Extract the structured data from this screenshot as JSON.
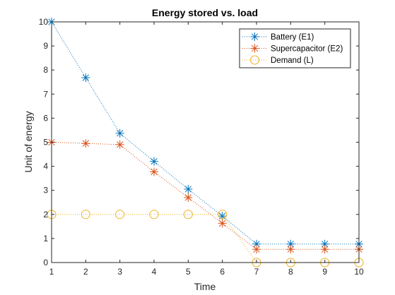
{
  "chart_data": {
    "type": "line",
    "title": "Energy stored vs. load",
    "xlabel": "Time",
    "ylabel": "Unit of energy",
    "xlim": [
      1,
      10
    ],
    "ylim": [
      0,
      10
    ],
    "xticks": [
      "1",
      "2",
      "3",
      "4",
      "5",
      "6",
      "7",
      "8",
      "9",
      "10"
    ],
    "yticks": [
      "0",
      "1",
      "2",
      "3",
      "4",
      "5",
      "6",
      "7",
      "8",
      "9",
      "10"
    ],
    "grid": false,
    "legend_position": "top-right",
    "x": [
      1,
      2,
      3,
      4,
      5,
      6,
      7,
      8,
      9,
      10
    ],
    "series": [
      {
        "name": "Battery (E1)",
        "values": [
          10,
          7.68,
          5.37,
          4.2,
          3.05,
          1.93,
          0.77,
          0.77,
          0.77,
          0.77
        ],
        "color": "#0072BD",
        "marker": "asterisk",
        "linestyle": "dotted"
      },
      {
        "name": "Supercapacitor (E2)",
        "values": [
          5.0,
          4.95,
          4.9,
          3.77,
          2.7,
          1.63,
          0.55,
          0.55,
          0.55,
          0.55
        ],
        "color": "#D95319",
        "marker": "asterisk",
        "linestyle": "dotted"
      },
      {
        "name": "Demand (L)",
        "values": [
          2,
          2,
          2,
          2,
          2,
          2,
          0,
          0,
          0,
          0
        ],
        "color": "#EDB120",
        "marker": "circle",
        "linestyle": "dotted"
      }
    ]
  }
}
